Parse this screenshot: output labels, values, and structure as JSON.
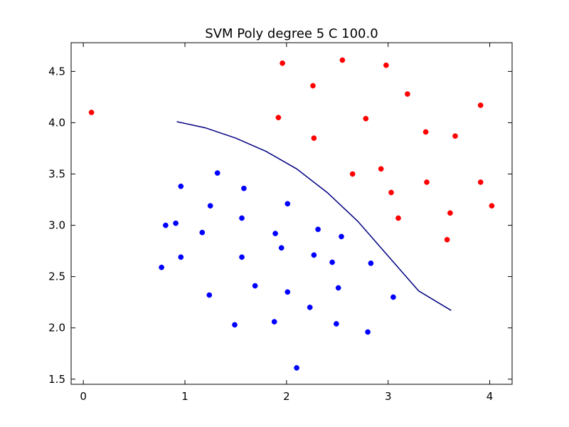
{
  "chart_data": {
    "type": "scatter",
    "title": "SVM Poly degree 5 C 100.0",
    "xlabel": "",
    "ylabel": "",
    "xlim": [
      -0.12,
      4.22
    ],
    "ylim": [
      1.45,
      4.78
    ],
    "x_ticks": [
      0,
      1,
      2,
      3,
      4
    ],
    "x_tick_labels": [
      "0",
      "1",
      "2",
      "3",
      "4"
    ],
    "y_ticks": [
      1.5,
      2.0,
      2.5,
      3.0,
      3.5,
      4.0,
      4.5
    ],
    "y_tick_labels": [
      "1.5",
      "2.0",
      "2.5",
      "3.0",
      "3.5",
      "4.0",
      "4.5"
    ],
    "grid": false,
    "series": [
      {
        "color": "#ff0000",
        "points": [
          [
            0.08,
            4.1
          ],
          [
            1.96,
            4.58
          ],
          [
            2.55,
            4.61
          ],
          [
            2.98,
            4.56
          ],
          [
            2.26,
            4.36
          ],
          [
            3.19,
            4.28
          ],
          [
            3.91,
            4.17
          ],
          [
            1.92,
            4.05
          ],
          [
            2.78,
            4.04
          ],
          [
            3.37,
            3.91
          ],
          [
            3.66,
            3.87
          ],
          [
            2.27,
            3.85
          ],
          [
            2.65,
            3.5
          ],
          [
            2.93,
            3.55
          ],
          [
            3.38,
            3.42
          ],
          [
            3.91,
            3.42
          ],
          [
            3.03,
            3.32
          ],
          [
            4.02,
            3.19
          ],
          [
            3.61,
            3.12
          ],
          [
            3.1,
            3.07
          ],
          [
            3.58,
            2.86
          ]
        ]
      },
      {
        "color": "#0000ff",
        "points": [
          [
            1.32,
            3.51
          ],
          [
            0.96,
            3.38
          ],
          [
            1.58,
            3.36
          ],
          [
            2.01,
            3.21
          ],
          [
            1.25,
            3.19
          ],
          [
            1.56,
            3.07
          ],
          [
            0.81,
            3.0
          ],
          [
            0.91,
            3.02
          ],
          [
            1.17,
            2.93
          ],
          [
            1.89,
            2.92
          ],
          [
            2.31,
            2.96
          ],
          [
            2.54,
            2.89
          ],
          [
            1.95,
            2.78
          ],
          [
            2.27,
            2.71
          ],
          [
            0.96,
            2.69
          ],
          [
            1.56,
            2.69
          ],
          [
            2.45,
            2.64
          ],
          [
            2.83,
            2.63
          ],
          [
            0.77,
            2.59
          ],
          [
            1.69,
            2.41
          ],
          [
            2.51,
            2.39
          ],
          [
            1.24,
            2.32
          ],
          [
            2.01,
            2.35
          ],
          [
            3.05,
            2.3
          ],
          [
            2.23,
            2.2
          ],
          [
            1.49,
            2.03
          ],
          [
            1.88,
            2.06
          ],
          [
            2.49,
            2.04
          ],
          [
            2.8,
            1.96
          ],
          [
            2.1,
            1.61
          ]
        ]
      }
    ],
    "lines": [
      {
        "color": "#000080",
        "points": [
          [
            0.92,
            4.01
          ],
          [
            1.2,
            3.95
          ],
          [
            1.5,
            3.85
          ],
          [
            1.8,
            3.72
          ],
          [
            2.1,
            3.55
          ],
          [
            2.4,
            3.32
          ],
          [
            2.7,
            3.04
          ],
          [
            3.0,
            2.7
          ],
          [
            3.3,
            2.36
          ],
          [
            3.62,
            2.17
          ]
        ]
      }
    ]
  }
}
